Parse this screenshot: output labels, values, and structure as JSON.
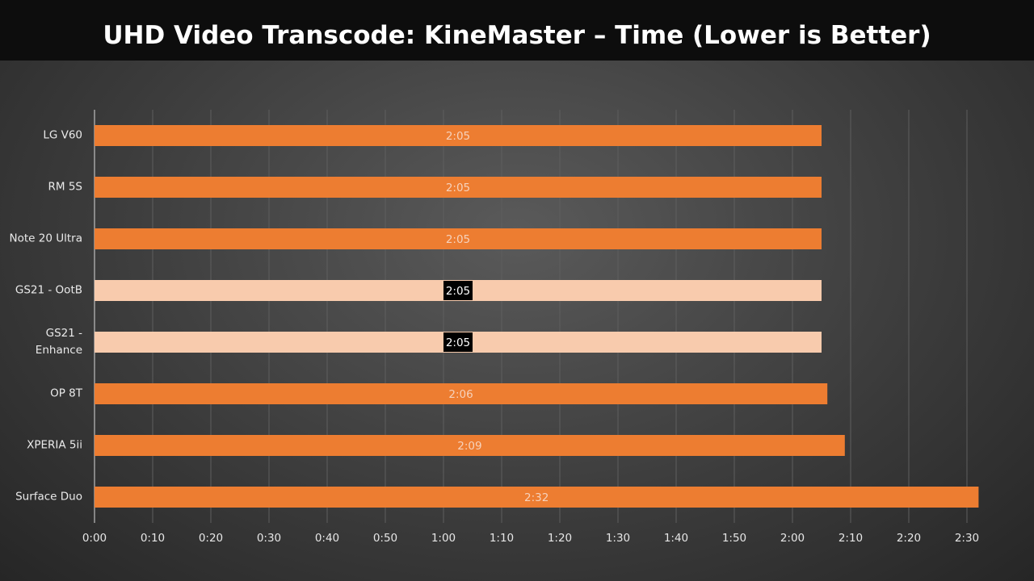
{
  "chart_data": {
    "type": "bar",
    "orientation": "horizontal",
    "title": "UHD Video Transcode: KineMaster – Time (Lower is Better)",
    "categories": [
      "LG V60",
      "RM 5S",
      "Note 20 Ultra",
      "GS21 - OotB",
      "GS21 - Enhance",
      "OP 8T",
      "XPERIA 5ii",
      "Surface Duo"
    ],
    "values": [
      125,
      125,
      125,
      125,
      125,
      126,
      129,
      152
    ],
    "value_labels": [
      "2:05",
      "2:05",
      "2:05",
      "2:05",
      "2:05",
      "2:06",
      "2:09",
      "2:32"
    ],
    "colors": [
      "#ed7d31",
      "#ed7d31",
      "#ed7d31",
      "#f8cbad",
      "#f8cbad",
      "#ed7d31",
      "#ed7d31",
      "#ed7d31"
    ],
    "xlim": [
      0,
      155
    ],
    "xticks": [
      {
        "value": 0,
        "label": "0:00"
      },
      {
        "value": 10,
        "label": "0:10"
      },
      {
        "value": 20,
        "label": "0:20"
      },
      {
        "value": 30,
        "label": "0:30"
      },
      {
        "value": 40,
        "label": "0:40"
      },
      {
        "value": 50,
        "label": "0:50"
      },
      {
        "value": 60,
        "label": "1:00"
      },
      {
        "value": 70,
        "label": "1:10"
      },
      {
        "value": 80,
        "label": "1:20"
      },
      {
        "value": 90,
        "label": "1:30"
      },
      {
        "value": 100,
        "label": "1:40"
      },
      {
        "value": 110,
        "label": "1:50"
      },
      {
        "value": 120,
        "label": "2:00"
      },
      {
        "value": 130,
        "label": "2:10"
      },
      {
        "value": 140,
        "label": "2:20"
      },
      {
        "value": 150,
        "label": "2:30"
      }
    ],
    "grid": true
  }
}
